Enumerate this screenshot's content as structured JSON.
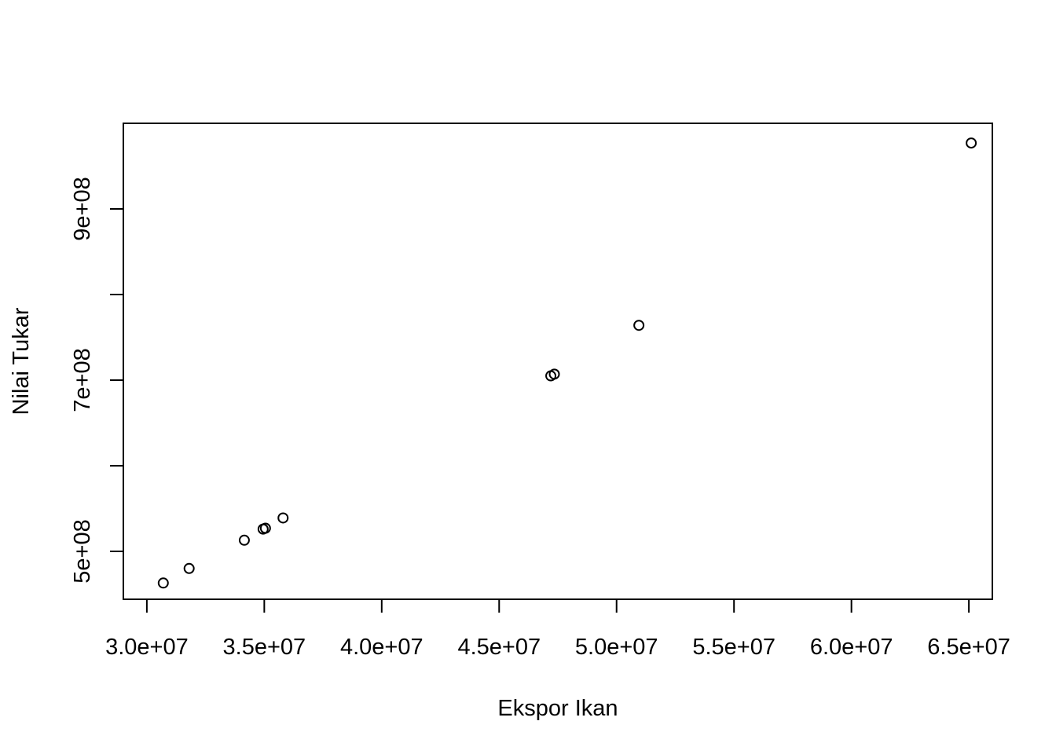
{
  "chart_data": {
    "type": "scatter",
    "xlabel": "Ekspor Ikan",
    "ylabel": "Nilai Tukar",
    "xlim": [
      29000000,
      66000000
    ],
    "ylim": [
      444000000,
      1000000000
    ],
    "x_ticks": [
      30000000,
      35000000,
      40000000,
      45000000,
      50000000,
      55000000,
      60000000,
      65000000
    ],
    "x_tick_labels": [
      "3.0e+07",
      "3.5e+07",
      "4.0e+07",
      "4.5e+07",
      "5.0e+07",
      "5.5e+07",
      "6.0e+07",
      "6.5e+07"
    ],
    "y_ticks": [
      500000000,
      600000000,
      700000000,
      800000000,
      900000000
    ],
    "y_tick_labels": [
      "5e+08",
      "",
      "7e+08",
      "",
      "9e+08"
    ],
    "grid": false,
    "marker": "open-circle",
    "points": [
      {
        "x": 30700000,
        "y": 463000000
      },
      {
        "x": 31800000,
        "y": 480000000
      },
      {
        "x": 34150000,
        "y": 513000000
      },
      {
        "x": 34950000,
        "y": 526000000
      },
      {
        "x": 35050000,
        "y": 527000000
      },
      {
        "x": 35800000,
        "y": 539000000
      },
      {
        "x": 47200000,
        "y": 705000000
      },
      {
        "x": 47350000,
        "y": 707000000
      },
      {
        "x": 50950000,
        "y": 764000000
      },
      {
        "x": 65100000,
        "y": 977000000
      }
    ]
  }
}
